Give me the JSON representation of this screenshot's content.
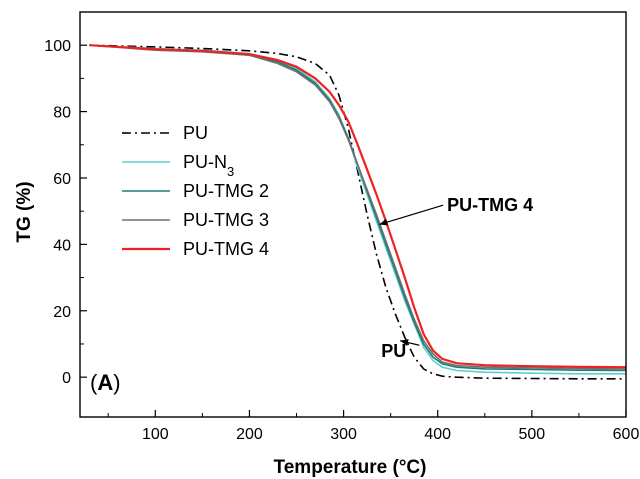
{
  "chart_data": {
    "type": "line",
    "panel_label": "A",
    "xlabel": "Temperature (°C)",
    "ylabel": "TG (%)",
    "xlim": [
      20,
      600
    ],
    "ylim": [
      -12,
      110
    ],
    "xticks": [
      100,
      200,
      300,
      400,
      500,
      600
    ],
    "yticks": [
      0,
      20,
      40,
      60,
      80,
      100
    ],
    "grid": false,
    "legend_position": "left-middle",
    "series": [
      {
        "name": "PU",
        "color": "#000000",
        "dash": "dash-dot",
        "x": [
          30,
          100,
          150,
          200,
          230,
          250,
          270,
          285,
          295,
          305,
          315,
          325,
          335,
          345,
          355,
          365,
          375,
          385,
          395,
          405,
          420,
          450,
          500,
          550,
          600
        ],
        "y": [
          100,
          99.5,
          99,
          98.3,
          97.5,
          96.5,
          94.5,
          91,
          85,
          75,
          62,
          49,
          37,
          27,
          19,
          12,
          6,
          2.5,
          1,
          0.3,
          0,
          -0.3,
          -0.4,
          -0.5,
          -0.5
        ]
      },
      {
        "name": "PU-N3",
        "color": "#5ccfcf",
        "dash": "solid",
        "x": [
          30,
          100,
          150,
          200,
          230,
          250,
          270,
          285,
          295,
          305,
          315,
          325,
          335,
          345,
          355,
          365,
          375,
          385,
          395,
          405,
          420,
          450,
          500,
          550,
          600
        ],
        "y": [
          100,
          99,
          98.5,
          97.5,
          95.5,
          93,
          89,
          84,
          79,
          72,
          63,
          55,
          47,
          39,
          31,
          23,
          16,
          9,
          5,
          3,
          2,
          1.5,
          1.2,
          1,
          1
        ]
      },
      {
        "name": "PU-TMG 2",
        "color": "#1e7b76",
        "dash": "solid",
        "x": [
          30,
          100,
          150,
          200,
          230,
          250,
          270,
          285,
          295,
          305,
          315,
          325,
          335,
          345,
          355,
          365,
          375,
          385,
          395,
          405,
          420,
          450,
          500,
          550,
          600
        ],
        "y": [
          100,
          98.8,
          98.2,
          97,
          95,
          92.5,
          88.5,
          83.5,
          78.5,
          72,
          64,
          56,
          48,
          40,
          32,
          24,
          16.5,
          10,
          6,
          4,
          3,
          2.5,
          2.3,
          2.1,
          2
        ]
      },
      {
        "name": "PU-TMG 3",
        "color": "#707070",
        "dash": "solid",
        "x": [
          30,
          100,
          150,
          200,
          230,
          250,
          270,
          285,
          295,
          305,
          315,
          325,
          335,
          345,
          355,
          365,
          375,
          385,
          395,
          405,
          420,
          450,
          500,
          550,
          600
        ],
        "y": [
          100,
          98.5,
          98,
          97,
          94.5,
          92,
          88,
          83,
          78,
          71.5,
          64,
          56.5,
          49,
          41,
          33,
          25,
          17.5,
          11,
          7,
          4.5,
          3.5,
          3,
          2.8,
          2.6,
          2.5
        ]
      },
      {
        "name": "PU-TMG 4",
        "color": "#ee2222",
        "dash": "solid",
        "x": [
          30,
          100,
          150,
          200,
          230,
          250,
          270,
          285,
          295,
          305,
          315,
          325,
          335,
          345,
          355,
          365,
          375,
          385,
          395,
          405,
          420,
          450,
          500,
          550,
          600
        ],
        "y": [
          100,
          98.8,
          98.3,
          97.3,
          95.5,
          93.5,
          90,
          86,
          82,
          77,
          70,
          62.5,
          55,
          47,
          38.5,
          30,
          21,
          13,
          8,
          5.5,
          4.2,
          3.6,
          3.3,
          3.1,
          3
        ]
      }
    ],
    "annotations": [
      {
        "text": "PU-TMG 4",
        "arrow_to": [
          338,
          46
        ],
        "text_at": [
          410,
          50
        ]
      },
      {
        "text": "PU",
        "arrow_to": [
          360,
          11
        ],
        "text_at": [
          340,
          6
        ]
      }
    ]
  }
}
